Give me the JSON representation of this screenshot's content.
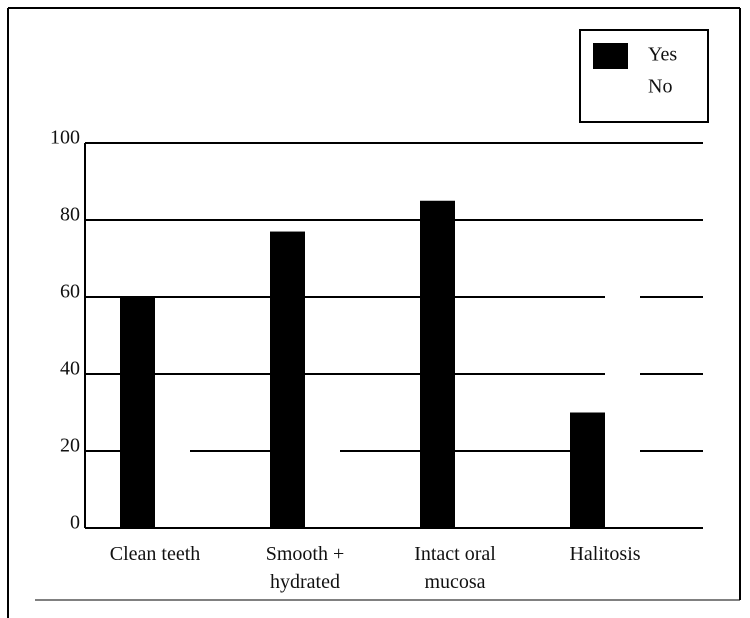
{
  "chart_data": {
    "type": "bar",
    "categories": [
      "Clean teeth",
      "Smooth + hydrated",
      "Intact oral mucosa",
      "Halitosis"
    ],
    "series": [
      {
        "name": "Yes",
        "color": "#000000",
        "values": [
          60,
          77,
          85,
          30
        ]
      },
      {
        "name": "No",
        "color": "#ffffff",
        "values": [
          22,
          25,
          15,
          70
        ]
      }
    ],
    "ylim": [
      0,
      100
    ],
    "yticks": [
      0,
      20,
      40,
      60,
      80,
      100
    ],
    "grid": true,
    "legend": "upper right"
  }
}
